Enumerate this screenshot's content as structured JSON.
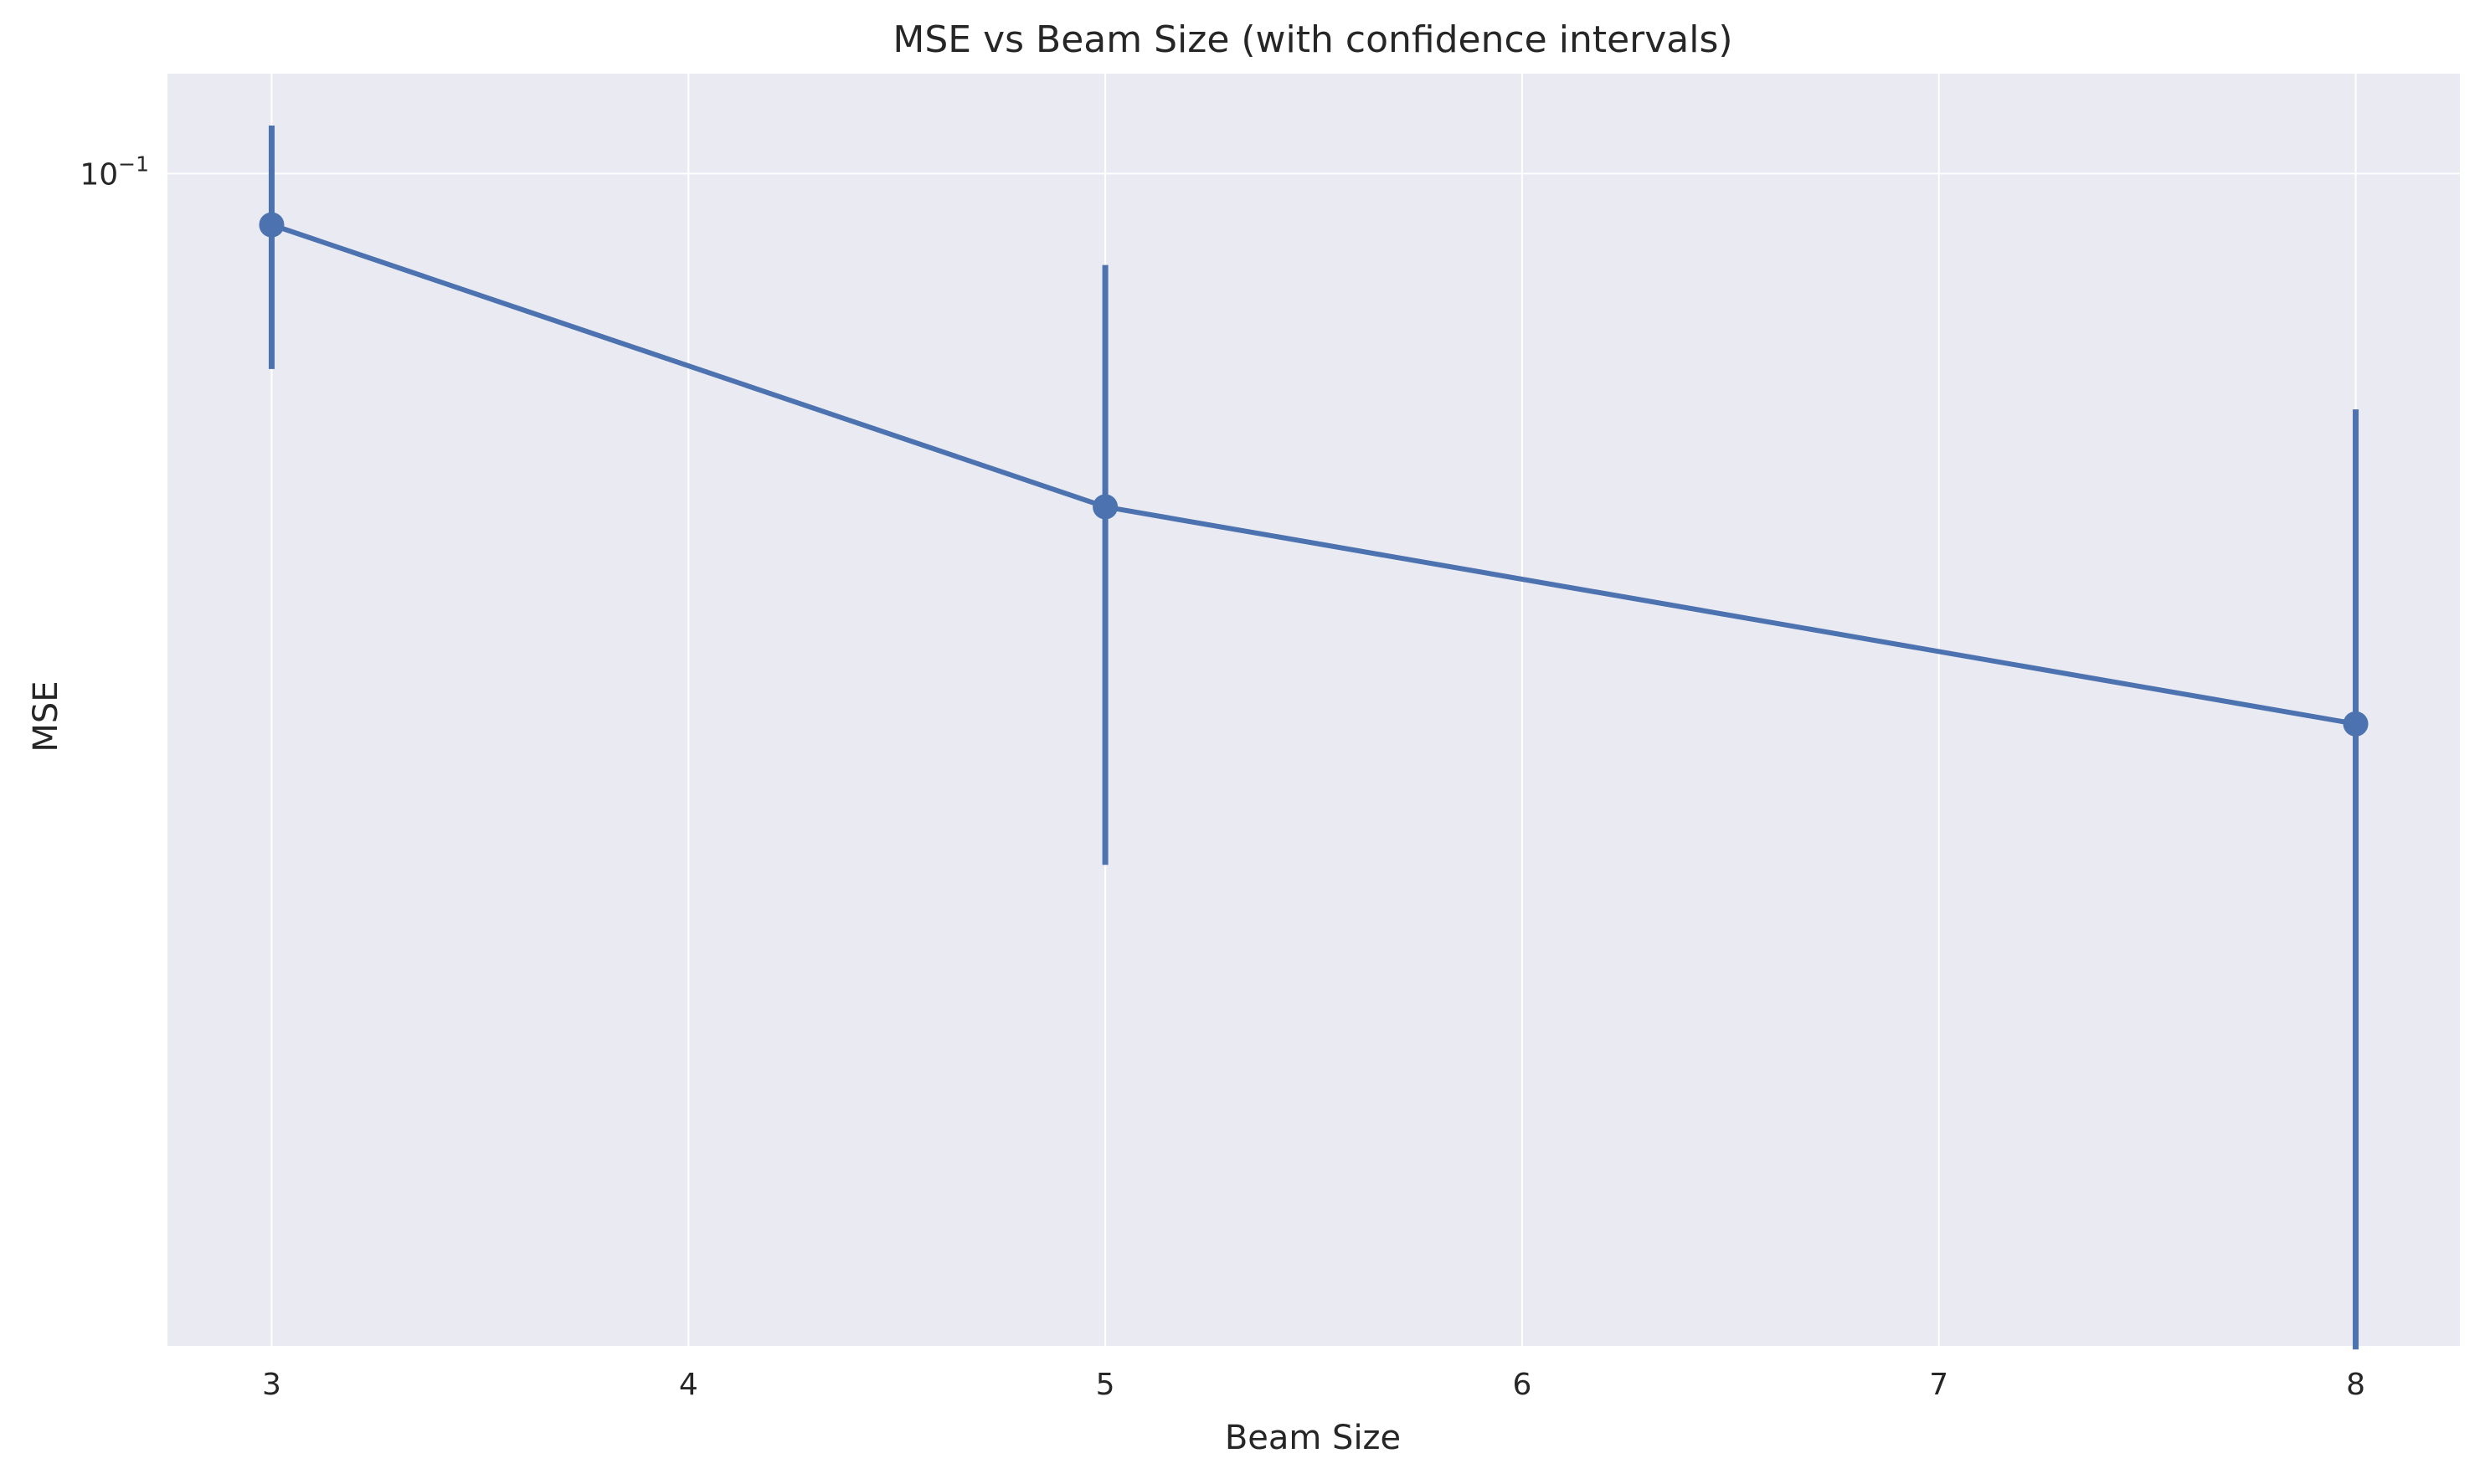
{
  "chart_data": {
    "type": "line",
    "title": "MSE vs Beam Size (with confidence intervals)",
    "xlabel": "Beam Size",
    "ylabel": "MSE",
    "x_ticks": [
      3,
      4,
      5,
      6,
      7,
      8
    ],
    "x_tick_labels": [
      "3",
      "4",
      "5",
      "6",
      "7",
      "8"
    ],
    "xlim": [
      2.75,
      8.25
    ],
    "y_scale": "log",
    "ylim": [
      0.0215,
      0.114
    ],
    "y_ticks": [
      0.1
    ],
    "y_tick_labels": [
      {
        "base": "10",
        "exp": "−1"
      }
    ],
    "grid": true,
    "legend": "none",
    "series": [
      {
        "x": [
          3,
          5,
          8
        ],
        "y": [
          0.0935,
          0.0646,
          0.0486
        ],
        "ci_lower": [
          0.0774,
          0.0404,
          0.0214
        ],
        "ci_upper": [
          0.1065,
          0.0887,
          0.0734
        ]
      }
    ]
  },
  "colors": {
    "line": "#4c72b0",
    "plot_background": "#eaeaf2",
    "grid": "#ffffff",
    "text": "#262626"
  }
}
